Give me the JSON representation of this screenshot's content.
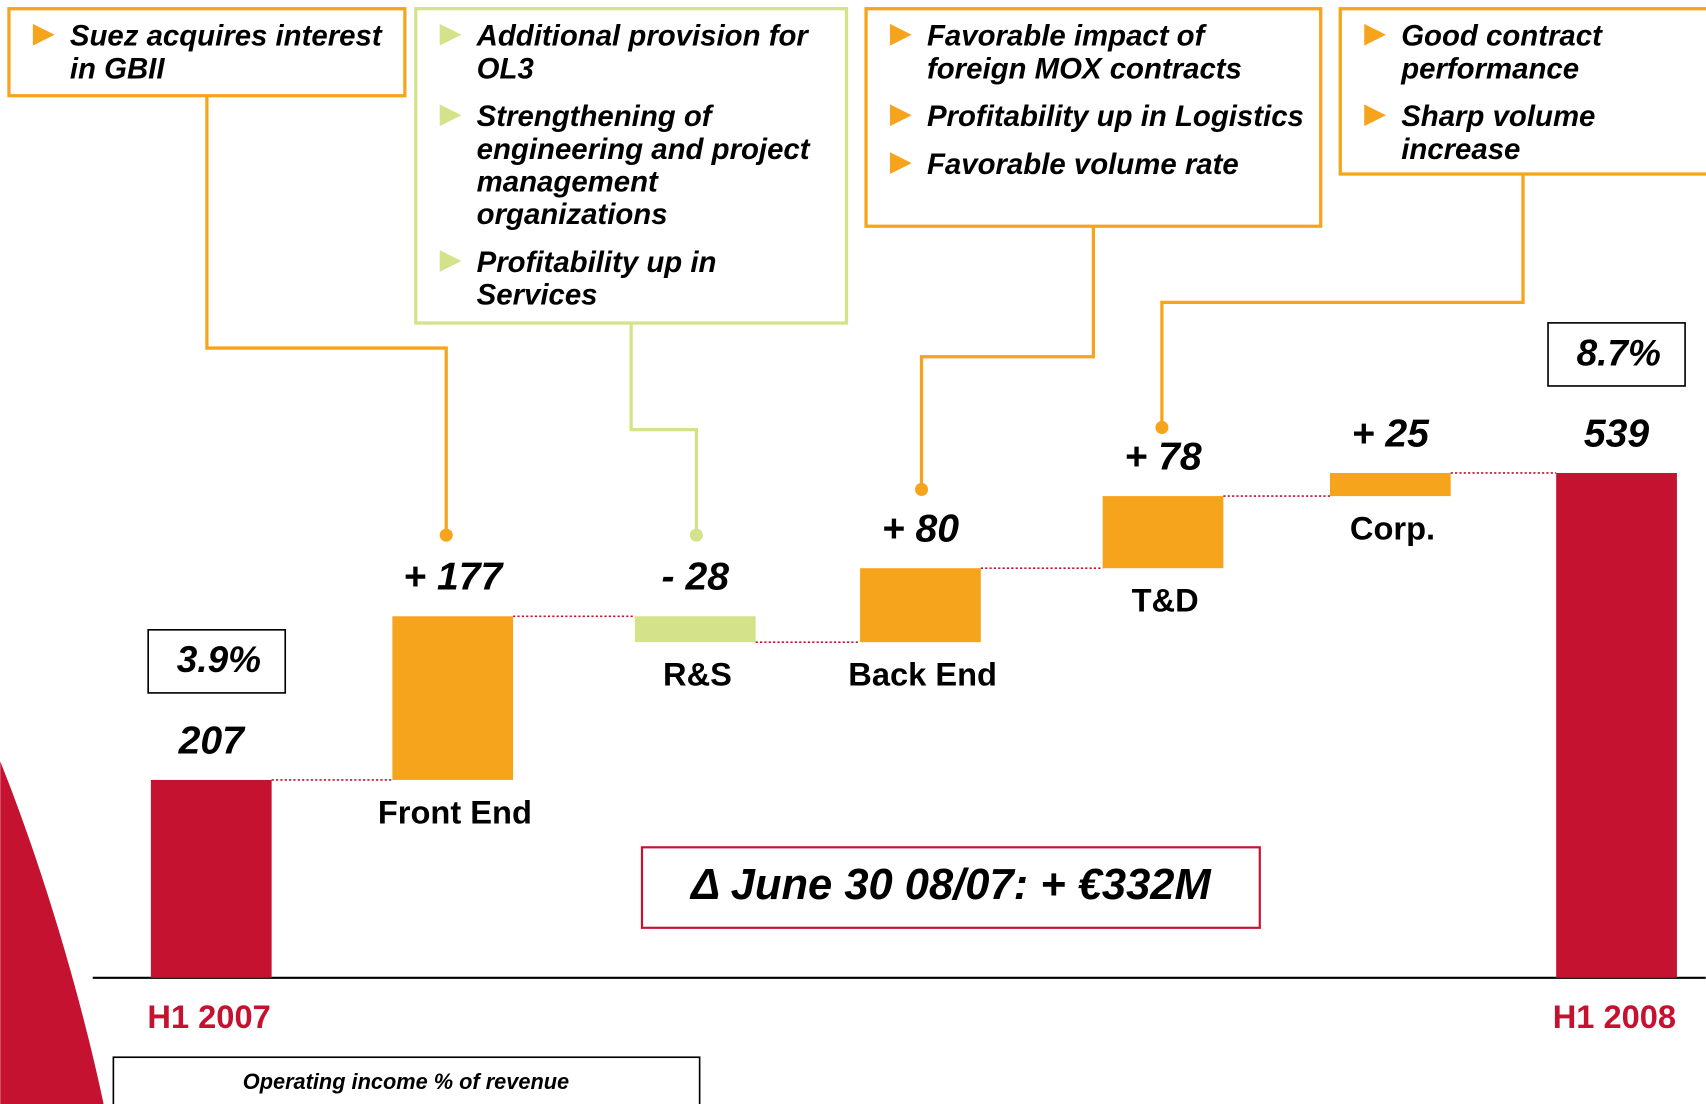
{
  "chart_data": {
    "type": "waterfall",
    "categories": [
      "H1 2007",
      "Front End",
      "R&S",
      "Back End",
      "T&D",
      "Corp.",
      "H1 2008"
    ],
    "values": [
      207,
      177,
      -28,
      80,
      78,
      25,
      539
    ],
    "value_labels": [
      "207",
      "+ 177",
      "- 28",
      "+ 80",
      "+ 78",
      "+ 25",
      "539"
    ],
    "measure": [
      "total",
      "relative",
      "relative",
      "relative",
      "relative",
      "relative",
      "total"
    ],
    "colors": [
      "#c41230",
      "#f7a41d",
      "#d4e38a",
      "#f7a41d",
      "#f7a41d",
      "#f7a41d",
      "#c41230"
    ],
    "margins": {
      "name": "Operating income % of revenue",
      "values": [
        3.9,
        8.7
      ],
      "value_labels": [
        "3.9%",
        "8.7%"
      ]
    },
    "summary": "Δ June 30 08/07: + €332M",
    "annotations": [
      {
        "color": "#f7a41d",
        "items": [
          "Suez acquires interest in GBII"
        ]
      },
      {
        "color": "#d4e38a",
        "items": [
          "Additional provision for OL3",
          "Strengthening of engineering and project management organizations",
          "Profitability up in Services"
        ]
      },
      {
        "color": "#f7a41d",
        "items": [
          "Favorable impact of foreign MOX contracts",
          "Profitability up in Logistics",
          "Favorable volume rate"
        ]
      },
      {
        "color": "#f7a41d",
        "items": [
          "Good contract performance",
          "Sharp volume increase"
        ]
      }
    ]
  }
}
